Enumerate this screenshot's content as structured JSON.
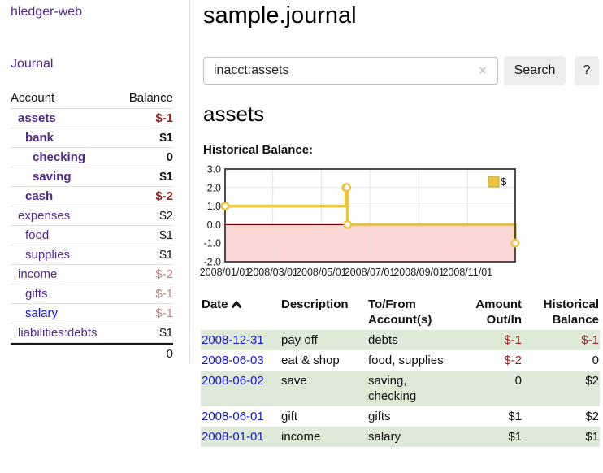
{
  "app": {
    "title": "hledger-web"
  },
  "sidebar": {
    "journal_link": "Journal",
    "accounts_header": {
      "account": "Account",
      "balance": "Balance"
    },
    "accounts": [
      {
        "name": "assets",
        "depth": 0,
        "bold": true,
        "negative": "strong",
        "balance": "$-1"
      },
      {
        "name": "bank",
        "depth": 1,
        "bold": true,
        "negative": null,
        "balance": "$1"
      },
      {
        "name": "checking",
        "depth": 2,
        "bold": true,
        "negative": null,
        "balance": "0"
      },
      {
        "name": "saving",
        "depth": 2,
        "bold": true,
        "negative": null,
        "balance": "$1"
      },
      {
        "name": "cash",
        "depth": 1,
        "bold": true,
        "negative": "strong",
        "balance": "$-2"
      },
      {
        "name": "expenses",
        "depth": 0,
        "bold": false,
        "negative": null,
        "balance": "$2"
      },
      {
        "name": "food",
        "depth": 1,
        "bold": false,
        "negative": null,
        "balance": "$1"
      },
      {
        "name": "supplies",
        "depth": 1,
        "bold": false,
        "negative": null,
        "balance": "$1"
      },
      {
        "name": "income",
        "depth": 0,
        "bold": false,
        "negative": "muted",
        "balance": "$-2"
      },
      {
        "name": "gifts",
        "depth": 1,
        "bold": false,
        "negative": "muted",
        "balance": "$-1"
      },
      {
        "name": "salary",
        "depth": 1,
        "bold": false,
        "negative": "muted",
        "balance": "$-1",
        "link_color": "blue"
      },
      {
        "name": "liabilities:debts",
        "depth": 0,
        "bold": false,
        "negative": null,
        "balance": "$1"
      }
    ],
    "total": "0"
  },
  "main": {
    "title": "sample.journal",
    "search": {
      "value": "inacct:assets",
      "clear_icon": "×",
      "button": "Search",
      "help": "?"
    },
    "section_title": "assets",
    "chart_caption": "Historical Balance:"
  },
  "chart_data": {
    "type": "line",
    "step": true,
    "title": "Historical Balance:",
    "x": [
      "2008-01-01",
      "2008-06-01",
      "2008-06-02",
      "2008-06-03",
      "2008-12-31"
    ],
    "series": [
      {
        "name": "$",
        "values": [
          1,
          2,
          2,
          0,
          -1
        ],
        "color": "#edc240"
      }
    ],
    "ylim": [
      -2,
      3
    ],
    "yticks": [
      {
        "v": 3,
        "label": "3.0"
      },
      {
        "v": 2,
        "label": "2.0"
      },
      {
        "v": 1,
        "label": "1.0"
      },
      {
        "v": 0,
        "label": "0.0"
      },
      {
        "v": -1,
        "label": "-1.0"
      },
      {
        "v": -2,
        "label": "-2.0"
      }
    ],
    "xticks": [
      {
        "date": "2008-01-01",
        "label": "2008/01/01"
      },
      {
        "date": "2008-03-01",
        "label": "2008/03/01"
      },
      {
        "date": "2008-05-01",
        "label": "2008/05/01"
      },
      {
        "date": "2008-07-01",
        "label": "2008/07/01"
      },
      {
        "date": "2008-09-01",
        "label": "2008/09/01"
      },
      {
        "date": "2008-11-01",
        "label": "2008/11/01"
      }
    ],
    "legend": {
      "label": "$",
      "position": "top-right"
    },
    "grid": true,
    "negative_region_color": "#fbd7d7",
    "zero_line_color": "#8b0000",
    "border_color": "#4d4d4d"
  },
  "table": {
    "columns": [
      {
        "label": "Date",
        "sorted": "asc"
      },
      {
        "label": "Description"
      },
      {
        "label": "To/From Account(s)"
      },
      {
        "label": "Amount Out/In",
        "align": "right"
      },
      {
        "label": "Historical Balance",
        "align": "right"
      }
    ],
    "rows": [
      {
        "date": "2008-12-31",
        "description": "pay off",
        "accounts": "debts",
        "amount": "$-1",
        "amount_negative": true,
        "balance": "$-1",
        "balance_negative": true
      },
      {
        "date": "2008-06-03",
        "description": "eat & shop",
        "accounts": "food, supplies",
        "amount": "$-2",
        "amount_negative": true,
        "balance": "0",
        "balance_negative": false
      },
      {
        "date": "2008-06-02",
        "description": "save",
        "accounts": "saving, checking",
        "amount": "0",
        "amount_negative": false,
        "balance": "$2",
        "balance_negative": false
      },
      {
        "date": "2008-06-01",
        "description": "gift",
        "accounts": "gifts",
        "amount": "$1",
        "amount_negative": false,
        "balance": "$2",
        "balance_negative": false
      },
      {
        "date": "2008-01-01",
        "description": "income",
        "accounts": "salary",
        "amount": "$1",
        "amount_negative": false,
        "balance": "$1",
        "balance_negative": false
      }
    ]
  }
}
